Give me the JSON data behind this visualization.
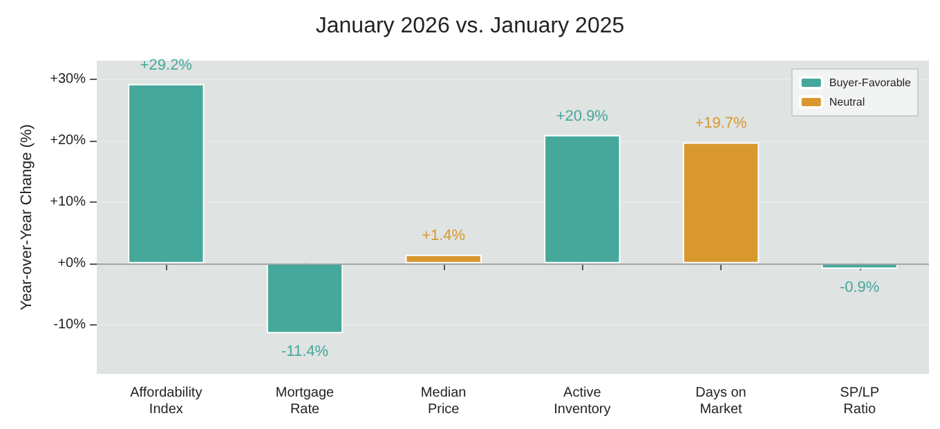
{
  "chart_data": {
    "type": "bar",
    "title": "January 2026 vs. January 2025",
    "ylabel": "Year-over-Year Change (%)",
    "categories": [
      "Affordability\nIndex",
      "Mortgage\nRate",
      "Median\nPrice",
      "Active\nInventory",
      "Days on\nMarket",
      "SP/LP\nRatio"
    ],
    "series": [
      {
        "name": "Buyer-Favorable",
        "color": "#45a89b",
        "values": [
          29.2,
          -11.4,
          null,
          20.9,
          null,
          -0.9
        ],
        "value_labels": [
          "+29.2%",
          "-11.4%",
          null,
          "+20.9%",
          null,
          "-0.9%"
        ]
      },
      {
        "name": "Neutral",
        "color": "#d8982e",
        "values": [
          null,
          null,
          1.4,
          null,
          19.7,
          null
        ],
        "value_labels": [
          null,
          null,
          "+1.4%",
          null,
          "+19.7%",
          null
        ]
      }
    ],
    "stacked": true,
    "ylim": [
      -18,
      33
    ],
    "yticks": [
      {
        "value": -10,
        "label": "-10%"
      },
      {
        "value": 0,
        "label": "+0%"
      },
      {
        "value": 10,
        "label": "+10%"
      },
      {
        "value": 20,
        "label": "+20%"
      },
      {
        "value": 30,
        "label": "+30%"
      }
    ],
    "ref_lines": [
      {
        "axis": "y",
        "value": 0,
        "label": null,
        "color": "#a0a4a4"
      }
    ],
    "grid": "y",
    "legend": "top right"
  }
}
